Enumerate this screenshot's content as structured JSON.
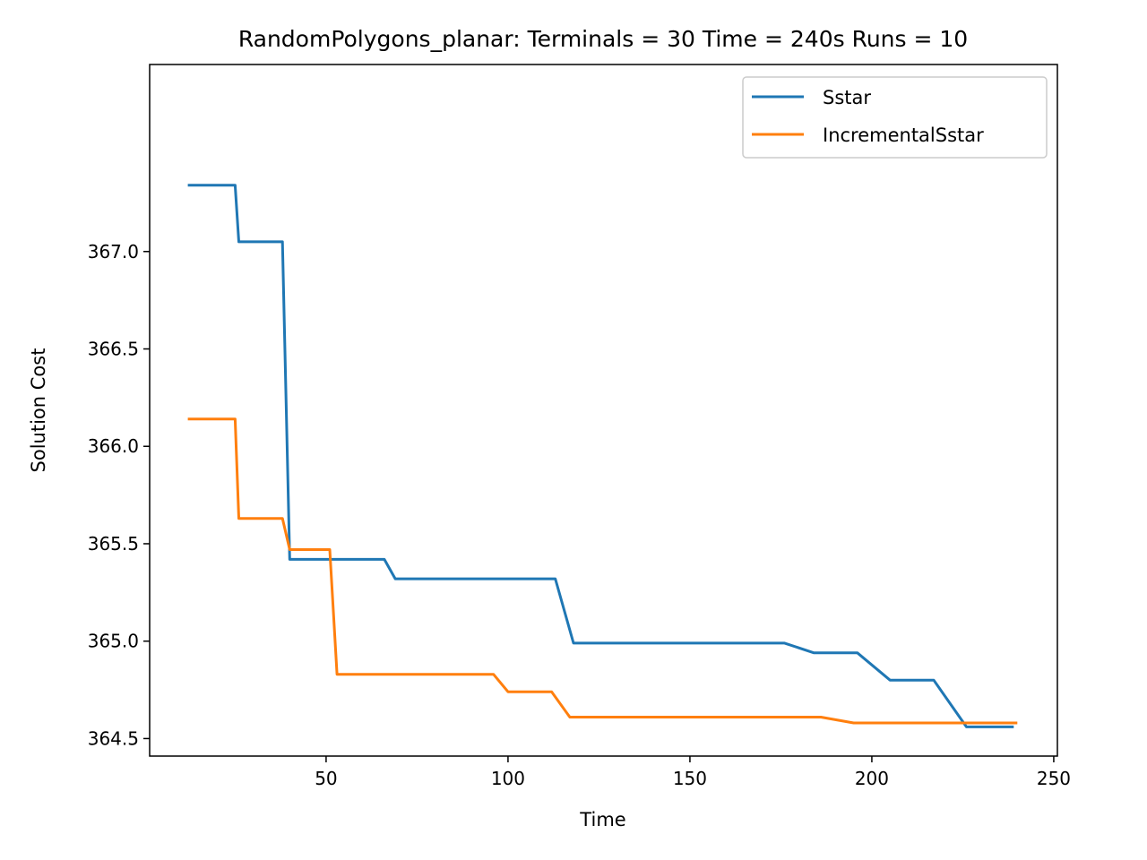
{
  "chart_data": {
    "type": "line",
    "title": "RandomPolygons_planar:  Terminals = 30  Time = 240s  Runs = 10",
    "xlabel": "Time",
    "ylabel": "Solution Cost",
    "xlim": [
      1.5,
      251
    ],
    "ylim": [
      364.41,
      367.96
    ],
    "xticks": [
      50,
      100,
      150,
      200,
      250
    ],
    "yticks": [
      364.5,
      365.0,
      365.5,
      366.0,
      366.5,
      367.0
    ],
    "xtick_labels": [
      "50",
      "100",
      "150",
      "200",
      "250"
    ],
    "ytick_labels": [
      "364.5",
      "365.0",
      "365.5",
      "366.0",
      "366.5",
      "367.0"
    ],
    "grid": false,
    "legend_position": "top-right",
    "colors": {
      "Sstar": "#1f77b4",
      "IncrementalSstar": "#ff7f0e"
    },
    "series": [
      {
        "name": "Sstar",
        "points": [
          [
            12,
            367.34
          ],
          [
            25,
            367.34
          ],
          [
            26,
            367.05
          ],
          [
            38,
            367.05
          ],
          [
            40,
            365.42
          ],
          [
            66,
            365.42
          ],
          [
            69,
            365.32
          ],
          [
            113,
            365.32
          ],
          [
            118,
            364.99
          ],
          [
            176,
            364.99
          ],
          [
            184,
            364.94
          ],
          [
            196,
            364.94
          ],
          [
            205,
            364.8
          ],
          [
            217,
            364.8
          ],
          [
            226,
            364.56
          ],
          [
            239,
            364.56
          ]
        ]
      },
      {
        "name": "IncrementalSstar",
        "points": [
          [
            12,
            366.14
          ],
          [
            25,
            366.14
          ],
          [
            26,
            365.63
          ],
          [
            38,
            365.63
          ],
          [
            40,
            365.47
          ],
          [
            51,
            365.47
          ],
          [
            53,
            364.83
          ],
          [
            96,
            364.83
          ],
          [
            100,
            364.74
          ],
          [
            112,
            364.74
          ],
          [
            117,
            364.61
          ],
          [
            186,
            364.61
          ],
          [
            195,
            364.58
          ],
          [
            240,
            364.58
          ]
        ]
      }
    ]
  }
}
